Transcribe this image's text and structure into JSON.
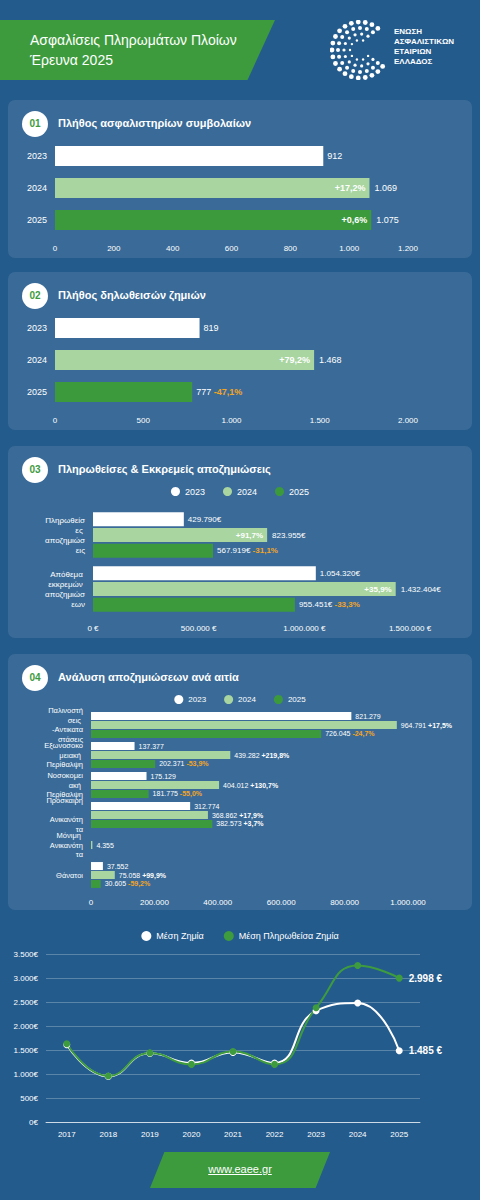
{
  "header": {
    "title": "Ασφαλίσεις Πληρωμάτων Πλοίων",
    "subtitle": "Έρευνα 2025",
    "organization": "ΕΝΩΣΗ ΑΣΦΑΛΙΣΤΙΚΩΝ ΕΤΑΙΡΙΩΝ ΕΛΛΑΔΟΣ"
  },
  "chart_data": [
    {
      "type": "bar",
      "number": "01",
      "title": "Πλήθος ασφαλιστηρίων συμβολαίων",
      "orientation": "horizontal",
      "categories": [
        "2023",
        "2024",
        "2025"
      ],
      "values": [
        912,
        1069,
        1075
      ],
      "value_labels": [
        "912",
        "1.069",
        "1.075"
      ],
      "changes": [
        null,
        "+17,2%",
        "+0,6%"
      ],
      "colors": [
        "#ffffff",
        "#a8d5a0",
        "#3c9a3c"
      ],
      "xlim": [
        0,
        1200
      ],
      "xticks": [
        0,
        200,
        400,
        600,
        800,
        {
          "value": 1000,
          "label": "1.000"
        },
        {
          "value": 1200,
          "label": "1.200"
        }
      ],
      "grid": false,
      "data_labels": true
    },
    {
      "type": "bar",
      "number": "02",
      "title": "Πλήθος δηλωθεισών ζημιών",
      "orientation": "horizontal",
      "categories": [
        "2023",
        "2024",
        "2025"
      ],
      "values": [
        819,
        1468,
        777
      ],
      "value_labels": [
        "819",
        "1.468",
        "777"
      ],
      "changes": [
        null,
        "+79,2%",
        "-47,1%"
      ],
      "colors": [
        "#ffffff",
        "#a8d5a0",
        "#3c9a3c"
      ],
      "xlim": [
        0,
        2000
      ],
      "xticks": [
        0,
        500,
        {
          "value": 1000,
          "label": "1.000"
        },
        {
          "value": 1500,
          "label": "1.500"
        },
        {
          "value": 2000,
          "label": "2.000"
        }
      ],
      "grid": false,
      "data_labels": true
    },
    {
      "type": "bar",
      "number": "03",
      "title": "Πληρωθείσες & Εκκρεμείς αποζημιώσεις",
      "orientation": "horizontal",
      "categories": [
        "Πληρωθείσες αποζημιώσεις",
        "Απόθεμα εκκρεμών αποζημιώσεων"
      ],
      "series": [
        {
          "name": "2023",
          "color": "#ffffff",
          "values": [
            429790,
            1054320
          ],
          "value_labels": [
            "429.790€",
            "1.054.320€"
          ],
          "changes": [
            null,
            null
          ]
        },
        {
          "name": "2024",
          "color": "#a8d5a0",
          "values": [
            823955,
            1432404
          ],
          "value_labels": [
            "823.955€",
            "1.432.404€"
          ],
          "changes": [
            "+91,7%",
            "+35,9%"
          ]
        },
        {
          "name": "2025",
          "color": "#3c9a3c",
          "values": [
            567919,
            955451
          ],
          "value_labels": [
            "567.919€",
            "955.451€"
          ],
          "changes": [
            "-31,1%",
            "-33,3%"
          ]
        }
      ],
      "xlim": [
        0,
        1500000
      ],
      "xticks": [
        {
          "value": 0,
          "label": "0 €"
        },
        {
          "value": 500000,
          "label": "500.000 €"
        },
        {
          "value": 1000000,
          "label": "1.000.000 €"
        },
        {
          "value": 1500000,
          "label": "1.500.000 €"
        }
      ],
      "legend": "top",
      "grid": false,
      "data_labels": true
    },
    {
      "type": "bar",
      "number": "04",
      "title": "Ανάλυση αποζημιώσεων ανά αιτία",
      "orientation": "horizontal",
      "categories": [
        "Παλινοστήσεις -Αντικαταστάσεις",
        "Εξωνοσοκομειακή Περίθαλψη",
        "Νοσοκομειακή Περίθαλψη",
        "Πρόσκαιρη Ανικανότητα",
        "Μόνιμη Ανικανότητα",
        "Θάνατοι"
      ],
      "series": [
        {
          "name": "2023",
          "color": "#ffffff",
          "values": [
            821279,
            137377,
            175129,
            312774,
            null,
            37552
          ],
          "value_labels": [
            "821.279",
            "137.377",
            "175.129",
            "312.774",
            null,
            "37.552"
          ],
          "changes": [
            null,
            null,
            null,
            null,
            null,
            null
          ]
        },
        {
          "name": "2024",
          "color": "#a8d5a0",
          "values": [
            964791,
            439282,
            404012,
            368862,
            4355,
            75058
          ],
          "value_labels": [
            "964.791",
            "439.282",
            "404.012",
            "368.862",
            "4.355",
            "75.058"
          ],
          "changes": [
            "+17,5%",
            "+219,8%",
            "+130,7%",
            "+17,9%",
            null,
            "+99,9%"
          ]
        },
        {
          "name": "2025",
          "color": "#3c9a3c",
          "values": [
            726045,
            202371,
            181775,
            382573,
            null,
            30605
          ],
          "value_labels": [
            "726.045",
            "202.371",
            "181.775",
            "382.573",
            null,
            "30.605"
          ],
          "changes": [
            "-24,7%",
            "-53,9%",
            "-55,0%",
            "+3,7%",
            null,
            "-59,2%"
          ]
        }
      ],
      "xlim": [
        0,
        1000000
      ],
      "xticks": [
        0,
        {
          "value": 200000,
          "label": "200.000"
        },
        {
          "value": 400000,
          "label": "400.000"
        },
        {
          "value": 600000,
          "label": "600.000"
        },
        {
          "value": 800000,
          "label": "800.000"
        },
        {
          "value": 1000000,
          "label": "1.000.000"
        }
      ],
      "legend": "top",
      "grid": false,
      "data_labels": true
    },
    {
      "type": "line",
      "categories": [
        "2017",
        "2018",
        "2019",
        "2020",
        "2021",
        "2022",
        "2023",
        "2024",
        "2025"
      ],
      "series": [
        {
          "name": "Μέση Ζημία",
          "color": "#ffffff",
          "values": [
            1610,
            950,
            1430,
            1230,
            1450,
            1230,
            2320,
            2480,
            1485
          ],
          "value_labels": [
            null,
            null,
            null,
            null,
            null,
            null,
            null,
            null,
            "1.485 €"
          ]
        },
        {
          "name": "Μέση Πληρωθείσα Ζημία",
          "color": "#3e9b3e",
          "values": [
            1630,
            960,
            1440,
            1200,
            1470,
            1200,
            2380,
            3260,
            2998
          ],
          "value_labels": [
            null,
            null,
            null,
            null,
            null,
            null,
            null,
            null,
            "2.998 €"
          ]
        }
      ],
      "ylim": [
        0,
        3500
      ],
      "yticks": [
        {
          "value": 0,
          "label": "0€"
        },
        {
          "value": 500,
          "label": "500€"
        },
        {
          "value": 1000,
          "label": "1.000€"
        },
        {
          "value": 1500,
          "label": "1.500€"
        },
        {
          "value": 2000,
          "label": "2.000€"
        },
        {
          "value": 2500,
          "label": "2.500€"
        },
        {
          "value": 3000,
          "label": "3.000€"
        },
        {
          "value": 3500,
          "label": "3.500€"
        }
      ],
      "marker": "circle",
      "line_style": "smooth",
      "legend": "top",
      "grid": true
    }
  ],
  "footer": {
    "url": "www.eaee.gr"
  }
}
